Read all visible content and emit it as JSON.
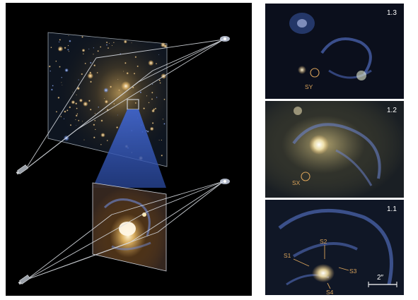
{
  "panels": [
    {
      "id": "1.3",
      "label": "1.3",
      "marker": "SY"
    },
    {
      "id": "1.2",
      "label": "1.2",
      "marker": "SX"
    },
    {
      "id": "1.1",
      "label": "1.1",
      "markers": [
        "S1",
        "S2",
        "S3",
        "S4"
      ]
    }
  ],
  "scale_bar": "2″",
  "colors": {
    "background_left": "#000000",
    "panel_background": "#0b0f1c",
    "marker_orange": "#d8a25a",
    "blue_cone": "#3f63c9"
  }
}
